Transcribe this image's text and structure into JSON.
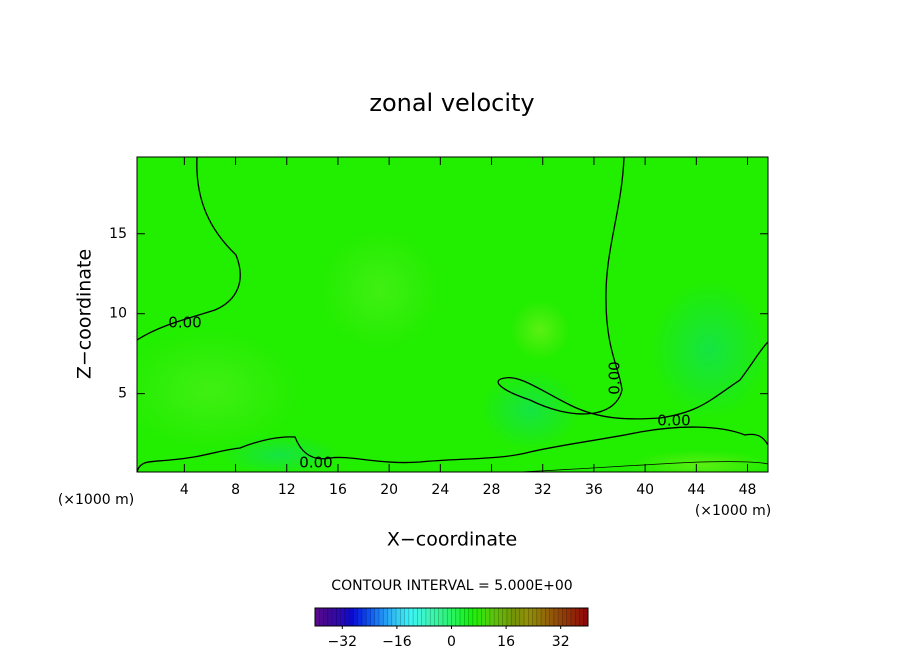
{
  "chart_data": {
    "type": "contour",
    "title": "zonal velocity",
    "x_label": "X−coordinate",
    "y_label": "Z−coordinate",
    "x_unit": "(×1000 m)",
    "xlim": [
      0.3,
      49.6
    ],
    "xticks": [
      4,
      8,
      12,
      16,
      20,
      24,
      28,
      32,
      36,
      40,
      44,
      48
    ],
    "ylim": [
      0.1,
      19.8
    ],
    "yticks": [
      5,
      10,
      15
    ],
    "field_color": "#22ee00",
    "contour": {
      "level": 0,
      "label": "0.00"
    },
    "contour_interval_text": "CONTOUR INTERVAL = 5.000E+00",
    "colorbar": {
      "lim": [
        -40,
        40
      ],
      "ticks": [
        {
          "value": -32,
          "label": "−32"
        },
        {
          "value": -16,
          "label": "−16"
        },
        0,
        16,
        32
      ]
    }
  }
}
